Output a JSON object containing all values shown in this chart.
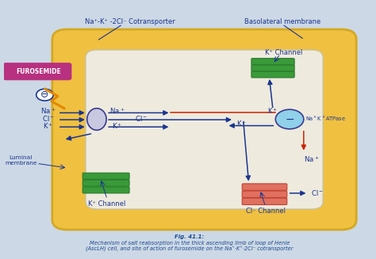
{
  "bg_color": "#ccd8e5",
  "fig_bg": "#ccd8e5",
  "outer_cell_color": "#f0c040",
  "outer_cell_edge": "#d4a820",
  "inner_cell_color": "#eeeade",
  "inner_cell_edge": "#c8c2a0",
  "furosemide_box_color": "#b83080",
  "furosemide_text": "FUROSEMIDE",
  "arrow_blue": "#1a3590",
  "arrow_red": "#cc2200",
  "label_color": "#1a3590",
  "cotransporter_label": "Na⁺-K⁺ -2Cl⁻ Cotransporter",
  "basolateral_label": "Basolateral membrane",
  "luminal_label": "Luminal\nmembrane",
  "k_channel_top_label": "K⁺ Channel",
  "k_channel_bot_label": "K⁺ Channel",
  "cl_channel_label": "Cl⁻ Channel",
  "na_k_atpase_label": "Na⁺K⁺ATPase",
  "green_channel_color": "#3a9a3a",
  "green_channel_edge": "#2a7a2a",
  "salmon_channel_color": "#e07060",
  "salmon_channel_edge": "#c04030",
  "cotransporter_circle_color": "#c8c8e0",
  "cotransporter_circle_edge": "#3a3a90",
  "na_k_atpase_circle_color": "#90d0e8",
  "na_k_atpase_circle_edge": "#3a3a90",
  "caption_bold": "Fig. 41.1:",
  "caption_rest": " Mechanism of salt reabsorption in the thick ascending limb of loop of Henle\n(AscLH) cell, and site of action of furosemide on the Na⁺·K⁺·2Cl⁻ cotransporter",
  "caption_color": "#1a4a90"
}
